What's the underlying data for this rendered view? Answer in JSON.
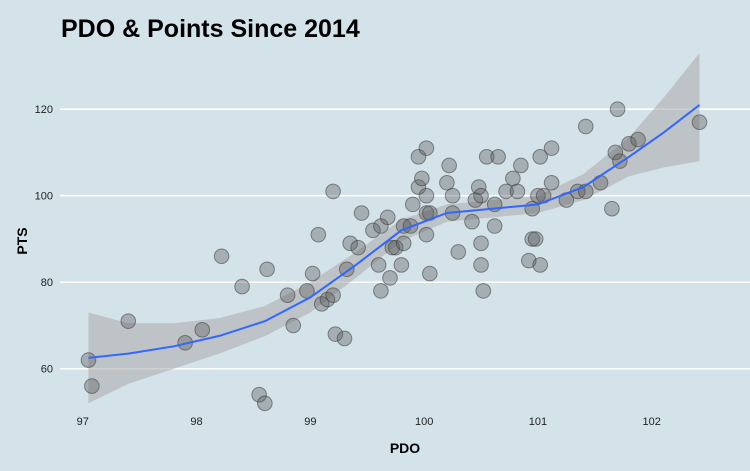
{
  "chart_data": {
    "type": "scatter",
    "title": "PDO & Points Since 2014",
    "xlabel": "PDO",
    "ylabel": "PTS",
    "xlim": [
      96.8,
      102.6
    ],
    "ylim": [
      50,
      133
    ],
    "x_ticks": [
      97,
      98,
      99,
      100,
      101,
      102
    ],
    "y_ticks": [
      60,
      80,
      100,
      120
    ],
    "grid": "horizontal",
    "colors": {
      "background": "#d4e2ea",
      "points": "#595959",
      "smooth_line": "#3366ff",
      "confidence_band": "#a9a9a9",
      "grid": "#ffffff"
    },
    "points": [
      {
        "x": 97.05,
        "y": 62
      },
      {
        "x": 97.08,
        "y": 56
      },
      {
        "x": 97.4,
        "y": 71
      },
      {
        "x": 97.9,
        "y": 66
      },
      {
        "x": 98.05,
        "y": 69
      },
      {
        "x": 98.22,
        "y": 86
      },
      {
        "x": 98.4,
        "y": 79
      },
      {
        "x": 98.55,
        "y": 54
      },
      {
        "x": 98.6,
        "y": 52
      },
      {
        "x": 98.62,
        "y": 83
      },
      {
        "x": 98.8,
        "y": 77
      },
      {
        "x": 98.85,
        "y": 70
      },
      {
        "x": 98.97,
        "y": 78
      },
      {
        "x": 99.02,
        "y": 82
      },
      {
        "x": 99.07,
        "y": 91
      },
      {
        "x": 99.1,
        "y": 75
      },
      {
        "x": 99.15,
        "y": 76
      },
      {
        "x": 99.2,
        "y": 77
      },
      {
        "x": 99.2,
        "y": 101
      },
      {
        "x": 99.22,
        "y": 68
      },
      {
        "x": 99.3,
        "y": 67
      },
      {
        "x": 99.32,
        "y": 83
      },
      {
        "x": 99.35,
        "y": 89
      },
      {
        "x": 99.42,
        "y": 88
      },
      {
        "x": 99.45,
        "y": 96
      },
      {
        "x": 99.55,
        "y": 92
      },
      {
        "x": 99.6,
        "y": 84
      },
      {
        "x": 99.62,
        "y": 78
      },
      {
        "x": 99.62,
        "y": 93
      },
      {
        "x": 99.68,
        "y": 95
      },
      {
        "x": 99.7,
        "y": 81
      },
      {
        "x": 99.72,
        "y": 88
      },
      {
        "x": 99.75,
        "y": 88
      },
      {
        "x": 99.8,
        "y": 84
      },
      {
        "x": 99.82,
        "y": 89
      },
      {
        "x": 99.82,
        "y": 93
      },
      {
        "x": 99.88,
        "y": 93
      },
      {
        "x": 99.9,
        "y": 98
      },
      {
        "x": 99.95,
        "y": 102
      },
      {
        "x": 99.98,
        "y": 104
      },
      {
        "x": 99.95,
        "y": 109
      },
      {
        "x": 100.02,
        "y": 111
      },
      {
        "x": 100.02,
        "y": 100
      },
      {
        "x": 100.02,
        "y": 96
      },
      {
        "x": 100.05,
        "y": 96
      },
      {
        "x": 100.02,
        "y": 91
      },
      {
        "x": 100.05,
        "y": 82
      },
      {
        "x": 100.2,
        "y": 103
      },
      {
        "x": 100.22,
        "y": 107
      },
      {
        "x": 100.25,
        "y": 100
      },
      {
        "x": 100.25,
        "y": 96
      },
      {
        "x": 100.3,
        "y": 87
      },
      {
        "x": 100.42,
        "y": 94
      },
      {
        "x": 100.45,
        "y": 99
      },
      {
        "x": 100.48,
        "y": 102
      },
      {
        "x": 100.5,
        "y": 100
      },
      {
        "x": 100.5,
        "y": 89
      },
      {
        "x": 100.5,
        "y": 84
      },
      {
        "x": 100.52,
        "y": 78
      },
      {
        "x": 100.55,
        "y": 109
      },
      {
        "x": 100.62,
        "y": 98
      },
      {
        "x": 100.62,
        "y": 93
      },
      {
        "x": 100.65,
        "y": 109
      },
      {
        "x": 100.72,
        "y": 101
      },
      {
        "x": 100.78,
        "y": 104
      },
      {
        "x": 100.82,
        "y": 101
      },
      {
        "x": 100.85,
        "y": 107
      },
      {
        "x": 100.92,
        "y": 85
      },
      {
        "x": 100.95,
        "y": 90
      },
      {
        "x": 100.95,
        "y": 97
      },
      {
        "x": 100.98,
        "y": 90
      },
      {
        "x": 101.0,
        "y": 100
      },
      {
        "x": 101.02,
        "y": 109
      },
      {
        "x": 101.02,
        "y": 84
      },
      {
        "x": 101.05,
        "y": 100
      },
      {
        "x": 101.12,
        "y": 103
      },
      {
        "x": 101.12,
        "y": 111
      },
      {
        "x": 101.25,
        "y": 99
      },
      {
        "x": 101.35,
        "y": 101
      },
      {
        "x": 101.42,
        "y": 101
      },
      {
        "x": 101.42,
        "y": 116
      },
      {
        "x": 101.55,
        "y": 103
      },
      {
        "x": 101.65,
        "y": 97
      },
      {
        "x": 101.68,
        "y": 110
      },
      {
        "x": 101.7,
        "y": 120
      },
      {
        "x": 101.72,
        "y": 108
      },
      {
        "x": 101.8,
        "y": 112
      },
      {
        "x": 101.88,
        "y": 113
      },
      {
        "x": 102.42,
        "y": 117
      }
    ],
    "smooth": {
      "x": [
        97.05,
        97.4,
        97.8,
        98.2,
        98.6,
        99.0,
        99.4,
        99.8,
        100.2,
        100.6,
        101.0,
        101.4,
        101.8,
        102.1,
        102.42
      ],
      "y": [
        62.5,
        63.5,
        65.2,
        67.6,
        71.0,
        76.5,
        84.0,
        92.0,
        96.0,
        97.0,
        98.0,
        102.0,
        109.0,
        114.5,
        121.0
      ],
      "low": [
        52.0,
        56.5,
        60.0,
        63.5,
        67.5,
        73.0,
        81.0,
        89.5,
        94.0,
        95.0,
        96.0,
        99.0,
        104.5,
        106.5,
        108.0
      ],
      "high": [
        73.0,
        70.5,
        70.5,
        71.7,
        74.5,
        80.0,
        87.0,
        94.5,
        98.0,
        99.0,
        100.0,
        105.0,
        113.5,
        122.5,
        133.0
      ]
    }
  }
}
